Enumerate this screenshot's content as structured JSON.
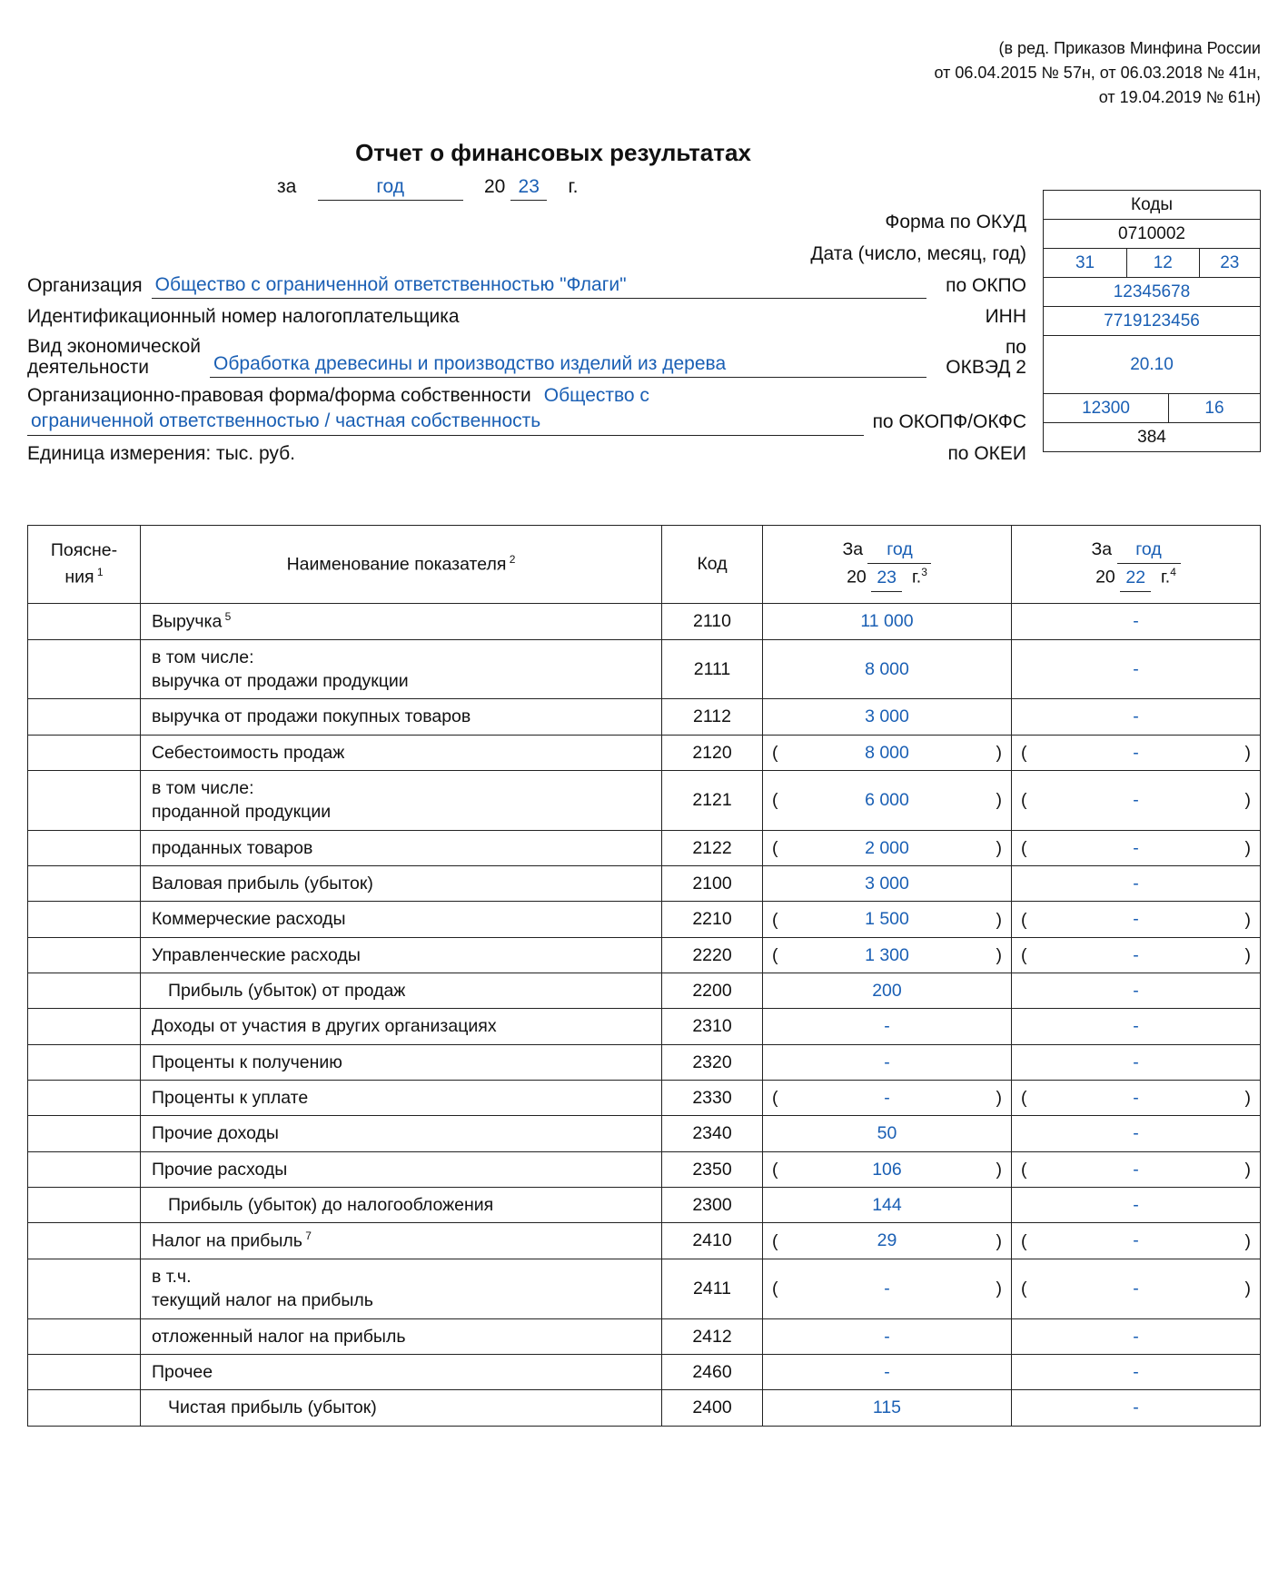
{
  "note": {
    "l1": "(в ред. Приказов Минфина России",
    "l2": "от 06.04.2015 № 57н, от 06.03.2018 № 41н,",
    "l3": "от 19.04.2019 № 61н)"
  },
  "title": "Отчет о финансовых результатах",
  "period_prefix": "за",
  "period_word": "год",
  "century": "20",
  "yy": "23",
  "g": "г.",
  "codes_header": "Коды",
  "codes": {
    "okud_lab": "Форма по ОКУД",
    "okud": "0710002",
    "date_lab": "Дата (число, месяц, год)",
    "date_d": "31",
    "date_m": "12",
    "date_y": "23",
    "okpo_lab": "по ОКПО",
    "okpo": "12345678",
    "inn_lab": "ИНН",
    "inn": "7719123456",
    "okved_lab": "по\nОКВЭД 2",
    "okved": "20.10",
    "okopf_lab": "по ОКОПФ/ОКФС",
    "okopf": "12300",
    "okfs": "16",
    "okei_lab": "по ОКЕИ",
    "okei": "384"
  },
  "org_lab": "Организация",
  "org_val": "Общество с ограниченной ответственностью \"Флаги\"",
  "inn_full_lab": "Идентификационный номер налогоплательщика",
  "activity_lab": "Вид экономической\nдеятельности",
  "activity_val": "Обработка древесины и производство изделий из дерева",
  "opf_lab": "Организационно-правовая форма/форма собственности",
  "opf_val1": "Общество с",
  "opf_val2": "ограниченной ответственностью / частная собственность",
  "unit_lab": "Единица измерения: тыс. руб.",
  "table": {
    "h_expl": "Поясне-\nния",
    "h_name": "Наименование показателя",
    "h_code": "Код",
    "h_cur_prefix": "За",
    "h_cur_word": "год",
    "h_cur_yy": "23",
    "h_prev_yy": "22",
    "rows": [
      {
        "name": "Выручка",
        "sup": "5",
        "code": "2110",
        "cur": "11 000",
        "prev": "-"
      },
      {
        "name": "в том числе:\nвыручка от продажи продукции",
        "code": "2111",
        "cur": "8 000",
        "prev": "-",
        "tall": true
      },
      {
        "name": "выручка от продажи покупных  товаров",
        "code": "2112",
        "cur": "3 000",
        "prev": "-"
      },
      {
        "name": "Себестоимость продаж",
        "code": "2120",
        "cur": "8 000",
        "prev": "-",
        "paren": true
      },
      {
        "name": "в том числе:\nпроданной продукции",
        "code": "2121",
        "cur": "6 000",
        "prev": "-",
        "paren": true,
        "tall": true
      },
      {
        "name": "проданных товаров",
        "code": "2122",
        "cur": "2 000",
        "prev": "-",
        "paren": true
      },
      {
        "name": "Валовая прибыль (убыток)",
        "code": "2100",
        "cur": "3 000",
        "prev": "-"
      },
      {
        "name": "Коммерческие расходы",
        "code": "2210",
        "cur": "1 500",
        "prev": "-",
        "paren": true
      },
      {
        "name": "Управленческие расходы",
        "code": "2220",
        "cur": "1 300",
        "prev": "-",
        "paren": true
      },
      {
        "name": "Прибыль (убыток) от продаж",
        "code": "2200",
        "cur": "200",
        "prev": "-",
        "indent": true
      },
      {
        "name": "Доходы от участия в других организациях",
        "code": "2310",
        "cur": "-",
        "prev": "-"
      },
      {
        "name": "Проценты к получению",
        "code": "2320",
        "cur": "-",
        "prev": "-"
      },
      {
        "name": "Проценты к уплате",
        "code": "2330",
        "cur": "-",
        "prev": "-",
        "paren": true
      },
      {
        "name": "Прочие доходы",
        "code": "2340",
        "cur": "50",
        "prev": "-"
      },
      {
        "name": "Прочие расходы",
        "code": "2350",
        "cur": "106",
        "prev": "-",
        "paren": true
      },
      {
        "name": "Прибыль (убыток) до налогообложения",
        "code": "2300",
        "cur": "144",
        "prev": "-",
        "indent": true
      },
      {
        "name": "Налог на прибыль",
        "sup": "7",
        "code": "2410",
        "cur": "29",
        "prev": "-",
        "paren": true
      },
      {
        "name": "в т.ч.\nтекущий налог на прибыль",
        "code": "2411",
        "cur": "-",
        "prev": "-",
        "paren": true,
        "tall": true
      },
      {
        "name": "отложенный налог на прибыль",
        "code": "2412",
        "cur": "-",
        "prev": "-"
      },
      {
        "name": "Прочее",
        "code": "2460",
        "cur": "-",
        "prev": "-"
      },
      {
        "name": "Чистая прибыль (убыток)",
        "code": "2400",
        "cur": "115",
        "prev": "-",
        "indent": true
      }
    ]
  }
}
